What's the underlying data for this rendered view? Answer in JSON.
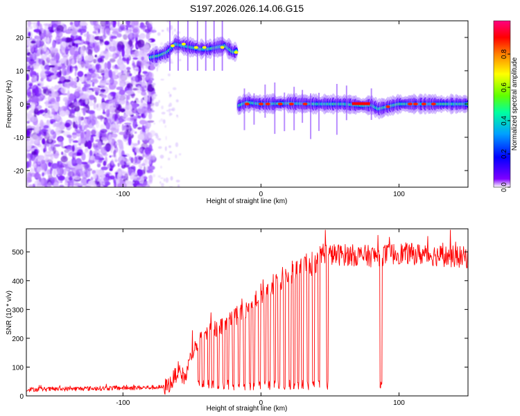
{
  "title": "S197.2026.026.14.06.G15",
  "chart_data": [
    {
      "type": "heatmap",
      "xlabel": "Height of straight line (km)",
      "ylabel": "Frequency (Hz)",
      "xlim": [
        -170,
        150
      ],
      "ylim": [
        -25,
        25
      ],
      "x_ticks": [
        -100,
        0,
        100
      ],
      "y_ticks": [
        -20,
        -10,
        0,
        10,
        20
      ],
      "colorbar": {
        "label": "Normalized spectral amplitude",
        "range": [
          0,
          1
        ],
        "ticks": [
          "0.0",
          "0.2",
          "0.4",
          "0.6",
          "0.8"
        ],
        "colors": [
          "#ffffff",
          "#7f00ff",
          "#0000ff",
          "#00a0ff",
          "#00ffa0",
          "#60ff00",
          "#ffff00",
          "#ff8000",
          "#ff0000",
          "#ff0080"
        ]
      },
      "traces": [
        {
          "x": [
            -80,
            -74,
            -68,
            -62,
            -56,
            -50,
            -44,
            -38,
            -32,
            -26,
            -20,
            -17
          ],
          "y": [
            14,
            14.5,
            15.5,
            18,
            17.5,
            17,
            16.5,
            16.5,
            17,
            17.5,
            15.5,
            16
          ]
        },
        {
          "x": [
            -16,
            -10,
            0,
            20,
            40,
            60,
            75,
            80,
            85,
            92,
            100,
            120,
            150
          ],
          "y": [
            -0.5,
            0.5,
            0,
            0.2,
            0,
            0,
            -0.5,
            -0.3,
            -1.5,
            -0.8,
            0,
            0,
            0
          ]
        }
      ]
    },
    {
      "type": "line",
      "xlabel": "Height of straight line (km)",
      "ylabel": "SNR (10 * v/v)",
      "xlim": [
        -170,
        150
      ],
      "ylim": [
        0,
        580
      ],
      "x_ticks": [
        -100,
        0,
        100
      ],
      "y_ticks": [
        0,
        100,
        200,
        300,
        400,
        500
      ],
      "series_color": "#ff0000",
      "envelope": {
        "x": [
          -170,
          -70,
          -65,
          -60,
          -55,
          -50,
          -40,
          -30,
          -20,
          -10,
          0,
          10,
          20,
          30,
          40,
          45,
          50,
          60,
          80,
          100,
          120,
          150
        ],
        "y": [
          22,
          30,
          45,
          90,
          60,
          150,
          220,
          240,
          270,
          300,
          360,
          380,
          420,
          440,
          470,
          500,
          490,
          490,
          485,
          495,
          490,
          480
        ]
      },
      "dropouts": [
        -45,
        -42,
        -38,
        -35,
        -31,
        -27,
        -24,
        -20,
        -16,
        -12,
        -8,
        -5,
        -1,
        3,
        6,
        10,
        13,
        17,
        21,
        24,
        27,
        30,
        34,
        38,
        42,
        48,
        87
      ]
    }
  ]
}
